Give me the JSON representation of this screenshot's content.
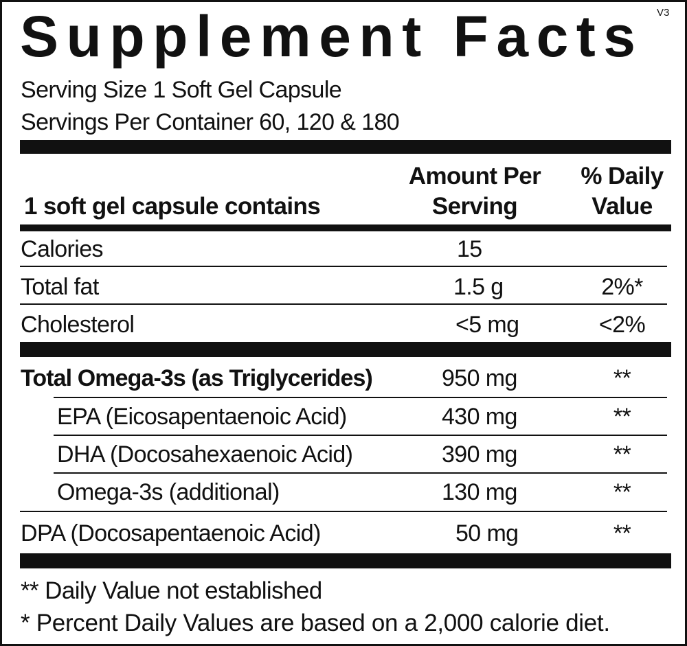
{
  "header": {
    "title": "Supplement Facts",
    "version": "V3",
    "serving_size": "Serving Size 1 Soft Gel Capsule",
    "servings_per_container": "Servings Per Container 60, 120 & 180"
  },
  "table": {
    "columns": [
      "1 soft gel capsule contains",
      "Amount Per Serving",
      "% Daily Value"
    ],
    "rows": [
      {
        "name": "Calories",
        "amount": "15",
        "daily_value": null,
        "bold": false,
        "indent": false
      },
      {
        "name": "Total fat",
        "amount": "1.5 g",
        "daily_value": "2%*",
        "bold": false,
        "indent": false
      },
      {
        "name": "Cholesterol",
        "amount": "<5 mg",
        "daily_value": "<2%",
        "bold": false,
        "indent": false
      },
      {
        "name": "Total Omega-3s (as Triglycerides)",
        "amount": "950 mg",
        "daily_value": "**",
        "bold": true,
        "indent": false
      },
      {
        "name": "EPA (Eicosapentaenoic Acid)",
        "amount": "430 mg",
        "daily_value": "**",
        "bold": false,
        "indent": true
      },
      {
        "name": "DHA (Docosahexaenoic Acid)",
        "amount": "390 mg",
        "daily_value": "**",
        "bold": false,
        "indent": true
      },
      {
        "name": "Omega-3s (additional)",
        "amount": "130 mg",
        "daily_value": "**",
        "bold": false,
        "indent": true
      },
      {
        "name": "DPA (Docosapentaenoic Acid)",
        "amount": "50 mg",
        "daily_value": "**",
        "bold": false,
        "indent": false
      }
    ]
  },
  "footnotes": [
    "** Daily Value not established",
    "* Percent Daily Values are based on a 2,000 calorie diet."
  ]
}
